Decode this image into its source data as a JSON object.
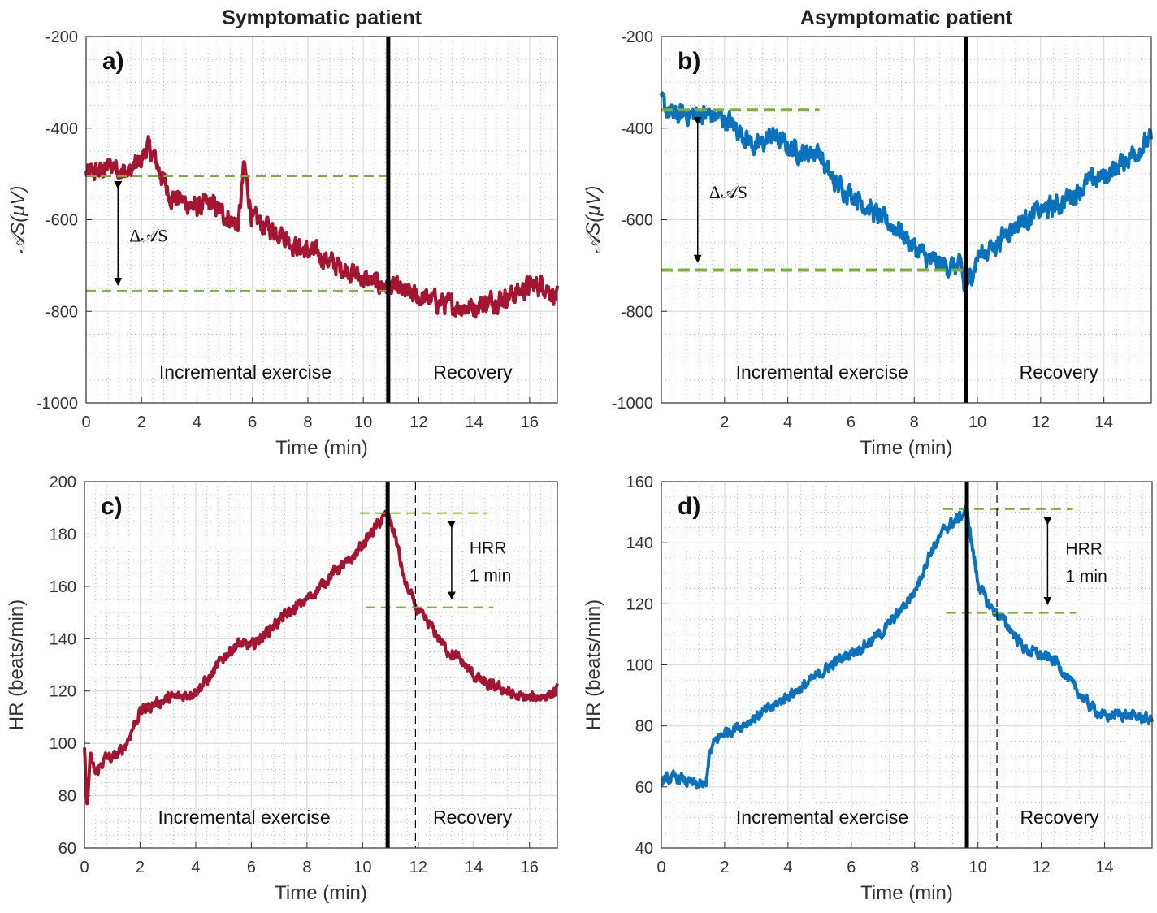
{
  "chart_data": [
    {
      "panel": "a)",
      "type": "line",
      "title": "Symptomatic patient",
      "xlabel": "Time (min)",
      "ylabel": "𝒜S(μV)",
      "xlim": [
        0,
        17
      ],
      "ylim": [
        -1000,
        -200
      ],
      "xticks": [
        0,
        2,
        4,
        6,
        8,
        10,
        12,
        14,
        16
      ],
      "yticks": [
        -1000,
        -800,
        -600,
        -400,
        -200
      ],
      "grid": true,
      "series": [
        {
          "color": "#a31530",
          "x": [
            0,
            0.5,
            1,
            1.5,
            2,
            2.2,
            2.5,
            3,
            3.5,
            4,
            4.5,
            5,
            5.5,
            5.7,
            6,
            6.5,
            7,
            7.5,
            8,
            8.5,
            9,
            9.5,
            10,
            10.5,
            10.9,
            11.5,
            12,
            12.5,
            13,
            13.5,
            14,
            14.5,
            15,
            15.5,
            16,
            16.5,
            17
          ],
          "values": [
            -500,
            -495,
            -480,
            -500,
            -470,
            -440,
            -470,
            -545,
            -560,
            -575,
            -565,
            -590,
            -610,
            -480,
            -600,
            -615,
            -625,
            -655,
            -670,
            -680,
            -700,
            -710,
            -730,
            -740,
            -745,
            -760,
            -770,
            -775,
            -785,
            -790,
            -790,
            -780,
            -770,
            -760,
            -745,
            -740,
            -770
          ]
        }
      ],
      "vline_solid": 10.9,
      "hlines": [
        {
          "y": -505,
          "x0": 0,
          "x1": 10.9
        },
        {
          "y": -755,
          "x0": 0,
          "x1": 10.9
        }
      ],
      "arrow": {
        "x": 1.15,
        "y0": -505,
        "y1": -755
      },
      "arrow_label": "Δ𝒜S",
      "region_labels": [
        "Incremental exercise",
        "Recovery"
      ]
    },
    {
      "panel": "b)",
      "type": "line",
      "title": "Asymptomatic patient",
      "xlabel": "Time (min)",
      "ylabel": "𝒜S(μV)",
      "xlim": [
        0,
        15.5
      ],
      "ylim": [
        -1000,
        -200
      ],
      "xticks": [
        2,
        4,
        6,
        8,
        10,
        12,
        14
      ],
      "yticks": [
        -1000,
        -800,
        -600,
        -400,
        -200
      ],
      "grid": true,
      "series": [
        {
          "color": "#0a72bd",
          "x": [
            0,
            0.3,
            0.7,
            1,
            1.5,
            2,
            2.3,
            2.7,
            3,
            3.5,
            4,
            4.5,
            5,
            5.2,
            5.5,
            6,
            6.5,
            7,
            7.5,
            8,
            8.5,
            9,
            9.5,
            9.6,
            10,
            10.5,
            11,
            11.5,
            12,
            12.5,
            13,
            13.5,
            14,
            14.5,
            15,
            15.5
          ],
          "values": [
            -340,
            -375,
            -370,
            -370,
            -370,
            -380,
            -395,
            -420,
            -445,
            -415,
            -440,
            -455,
            -450,
            -490,
            -520,
            -540,
            -570,
            -600,
            -620,
            -660,
            -690,
            -700,
            -705,
            -760,
            -680,
            -660,
            -620,
            -600,
            -580,
            -570,
            -545,
            -520,
            -505,
            -480,
            -450,
            -425
          ]
        }
      ],
      "vline_solid": 9.65,
      "hlines": [
        {
          "y": -360,
          "x0": 0,
          "x1": 5
        },
        {
          "y": -710,
          "x0": 0,
          "x1": 9.65
        }
      ],
      "arrow": {
        "x": 1.15,
        "y0": -365,
        "y1": -705
      },
      "arrow_label": "Δ𝒜S",
      "region_labels": [
        "Incremental exercise",
        "Recovery"
      ]
    },
    {
      "panel": "c)",
      "type": "line",
      "title": "",
      "xlabel": "Time (min)",
      "ylabel": "HR (beats/min)",
      "xlim": [
        0,
        17
      ],
      "ylim": [
        60,
        200
      ],
      "xticks": [
        0,
        2,
        4,
        6,
        8,
        10,
        12,
        14,
        16
      ],
      "yticks": [
        60,
        80,
        100,
        120,
        140,
        160,
        180,
        200
      ],
      "grid": true,
      "series": [
        {
          "color": "#a31530",
          "x": [
            0,
            0.1,
            0.2,
            0.4,
            0.6,
            0.8,
            1,
            1.3,
            1.5,
            1.7,
            2,
            2.5,
            3,
            3.5,
            4,
            4.5,
            5,
            5.5,
            6,
            6.5,
            7,
            7.5,
            8,
            8.5,
            9,
            9.5,
            10,
            10.5,
            10.9,
            11.2,
            11.5,
            12,
            12.5,
            13,
            13.5,
            14,
            14.5,
            15,
            15.5,
            16,
            16.5,
            17
          ],
          "values": [
            97,
            75,
            95,
            88,
            92,
            95,
            94,
            97,
            100,
            105,
            112,
            115,
            117,
            118,
            120,
            125,
            133,
            138,
            137,
            142,
            147,
            151,
            155,
            160,
            166,
            169,
            176,
            183,
            188,
            178,
            162,
            150,
            144,
            136,
            132,
            126,
            122,
            121,
            118,
            117,
            118,
            120
          ]
        }
      ],
      "vline_solid": 10.9,
      "vline_dashed": 11.9,
      "hlines": [
        {
          "y": 188,
          "x0": 9.9,
          "x1": 14.5
        },
        {
          "y": 152,
          "x0": 10.1,
          "x1": 14.7
        }
      ],
      "arrow": {
        "x": 13.2,
        "y0": 187,
        "y1": 153
      },
      "arrow_label_lines": [
        "HRR",
        "1 min"
      ],
      "region_labels": [
        "Incremental exercise",
        "Recovery"
      ]
    },
    {
      "panel": "d)",
      "type": "line",
      "title": "",
      "xlabel": "Time (min)",
      "ylabel": "HR (beats/min)",
      "xlim": [
        0,
        15.5
      ],
      "ylim": [
        40,
        160
      ],
      "xticks": [
        0,
        2,
        4,
        6,
        8,
        10,
        12,
        14
      ],
      "yticks": [
        40,
        60,
        80,
        100,
        120,
        140,
        160
      ],
      "grid": true,
      "series": [
        {
          "color": "#0a72bd",
          "x": [
            0,
            0.5,
            1,
            1.4,
            1.5,
            1.7,
            2,
            2.5,
            3,
            3.5,
            4,
            4.5,
            5,
            5.5,
            6,
            6.5,
            7,
            7.5,
            8,
            8.5,
            9,
            9.5,
            9.65,
            9.8,
            10,
            10.3,
            10.6,
            11,
            11.5,
            12,
            12.5,
            13,
            13.5,
            14,
            14.5,
            15,
            15.5
          ],
          "values": [
            62,
            63,
            61,
            60,
            70,
            75,
            78,
            80,
            83,
            86,
            90,
            93,
            97,
            101,
            104,
            107,
            111,
            117,
            124,
            137,
            145,
            149,
            151,
            140,
            127,
            120,
            117,
            112,
            105,
            103,
            101,
            93,
            87,
            83,
            84,
            83,
            82
          ]
        }
      ],
      "vline_solid": 9.65,
      "vline_dashed": 10.6,
      "hlines": [
        {
          "y": 151,
          "x0": 8.9,
          "x1": 13
        },
        {
          "y": 117,
          "x0": 9.0,
          "x1": 13.1
        }
      ],
      "arrow": {
        "x": 12.2,
        "y0": 150,
        "y1": 118
      },
      "arrow_label_lines": [
        "HRR",
        "1 min"
      ],
      "region_labels": [
        "Incremental exercise",
        "Recovery"
      ]
    }
  ],
  "colors": {
    "hline": "#7ab037",
    "vline": "#000000",
    "grid_major": "#dddddd",
    "grid_minor": "#bbbbbb"
  }
}
